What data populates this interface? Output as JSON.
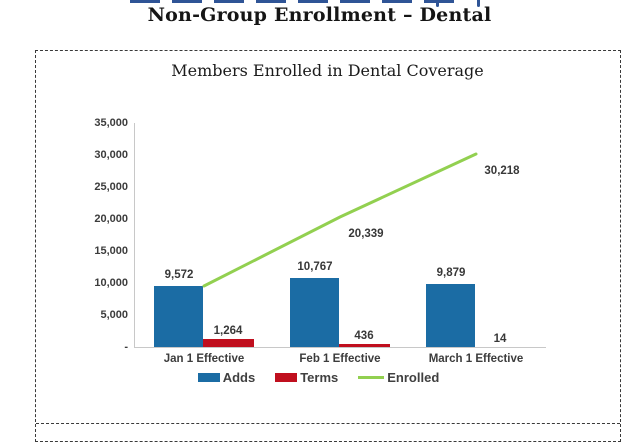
{
  "page_title": "Non-Group Enrollment – Dental",
  "chart": {
    "title": "Members Enrolled in Dental Coverage"
  },
  "chart_data": {
    "type": "bar",
    "title": "Members Enrolled in Dental Coverage",
    "categories": [
      "Jan 1 Effective",
      "Feb 1 Effective",
      "March 1 Effective"
    ],
    "series": [
      {
        "name": "Adds",
        "type": "bar",
        "color": "#1B6CA4",
        "values": [
          9572,
          10767,
          9879
        ],
        "labels": [
          "9,572",
          "10,767",
          "9,879"
        ]
      },
      {
        "name": "Terms",
        "type": "bar",
        "color": "#C00F1E",
        "values": [
          1264,
          436,
          14
        ],
        "labels": [
          "1,264",
          "436",
          "14"
        ]
      },
      {
        "name": "Enrolled",
        "type": "line",
        "color": "#92D050",
        "values": [
          9572,
          20339,
          30218
        ],
        "labels": [
          "",
          "20,339",
          "30,218"
        ]
      }
    ],
    "y_axis": {
      "min": 0,
      "max": 35000,
      "tick_interval": 5000,
      "ticks": [
        "35,000",
        "30,000",
        "25,000",
        "20,000",
        "15,000",
        "10,000",
        "5,000",
        "-"
      ]
    },
    "legend": {
      "position": "bottom",
      "entries": [
        "Adds",
        "Terms",
        "Enrolled"
      ]
    },
    "grid": false
  },
  "colors": {
    "adds_blue": "#1B6CA4",
    "terms_red": "#C00F1E",
    "enrolled_green": "#92D050",
    "heading_blue": "#2F5496"
  }
}
